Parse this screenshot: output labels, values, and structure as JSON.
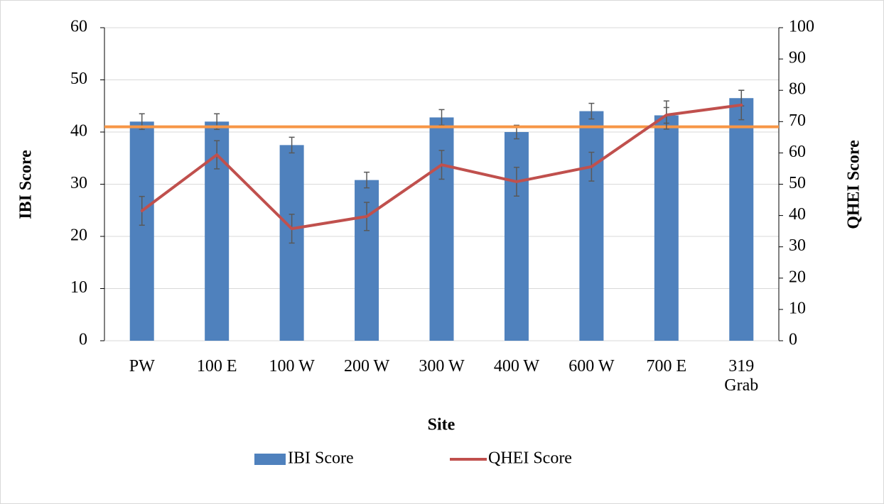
{
  "chart_data": {
    "type": "bar-line",
    "categories": [
      "PW",
      "100 E",
      "100 W",
      "200 W",
      "300 W",
      "400 W",
      "600 W",
      "700 E",
      "319\nGrab"
    ],
    "x_label": "Site",
    "y_label": "IBI Score",
    "y2_label": "QHEI Score",
    "series": [
      {
        "name": "IBI Score",
        "type": "bar",
        "color": "#4f81bd",
        "values": [
          42,
          42,
          37.5,
          30.8,
          42.8,
          40,
          44,
          43.2,
          46.5
        ],
        "errors": [
          1.5,
          1.5,
          1.5,
          1.5,
          1.5,
          1.3,
          1.5,
          1.5,
          1.5
        ]
      },
      {
        "name": "QHEI Score",
        "type": "line",
        "axis": "y2",
        "color": "#c0504d",
        "values": [
          41.5,
          59.4,
          35.8,
          39.7,
          56.2,
          50.8,
          55.6,
          72.1,
          75.3
        ],
        "errors": [
          4.6,
          4.5,
          4.6,
          4.5,
          4.6,
          4.6,
          4.6,
          4.5,
          4.7
        ]
      }
    ],
    "reference_line": {
      "value": 41,
      "color": "#f79646"
    },
    "ylim": [
      0,
      60
    ],
    "yticks": [
      0,
      10,
      20,
      30,
      40,
      50,
      60
    ],
    "y2lim": [
      0,
      100
    ],
    "y2ticks": [
      0,
      10,
      20,
      30,
      40,
      50,
      60,
      70,
      80,
      90,
      100
    ],
    "grid": true,
    "legend": "bottom"
  }
}
